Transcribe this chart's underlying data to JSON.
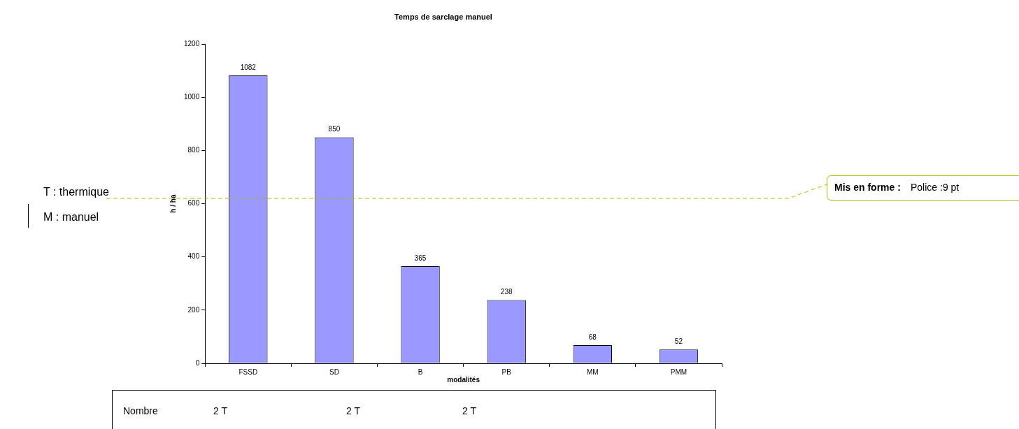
{
  "chart_data": {
    "type": "bar",
    "title": "Temps de sarclage manuel",
    "xlabel": "modalités",
    "ylabel": "h / ha",
    "categories": [
      "FSSD",
      "SD",
      "B",
      "PB",
      "MM",
      "PMM"
    ],
    "values": [
      1082,
      850,
      365,
      238,
      68,
      52
    ],
    "color": "#9999ff",
    "ref_lines": [
      {
        "axis": "y",
        "value": 620,
        "color": "#b8b800",
        "line_style": "dashed"
      }
    ],
    "ylim": [
      0,
      1200
    ],
    "yticks": [
      0,
      200,
      400,
      600,
      800,
      1000,
      1200
    ],
    "grid": false,
    "legend": false,
    "data_labels": true,
    "annotations": [
      "T : thermique",
      "M : manuel",
      "Mis en forme :",
      "Police :9 pt",
      "Nombre",
      "2 T",
      "2 T",
      "2 T"
    ]
  }
}
